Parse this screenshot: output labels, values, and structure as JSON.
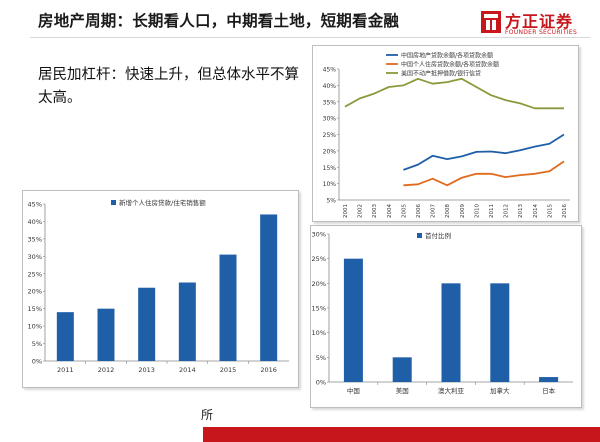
{
  "slide": {
    "title": "房地产周期：长期看人口，中期看土地，短期看金融",
    "body": "居民加杠杆：快速上升，但总体水平不算太高。",
    "footer_text": "所"
  },
  "logo": {
    "name": "方正证券",
    "subtitle": "FOUNDER SECURITIES",
    "color": "#c8161d"
  },
  "chart_data": [
    {
      "id": "line-chart",
      "type": "line",
      "title": "",
      "xlabel": "",
      "ylabel": "",
      "x": [
        "2001",
        "2002",
        "2003",
        "2004",
        "2005",
        "2006",
        "2007",
        "2008",
        "2009",
        "2010",
        "2011",
        "2012",
        "2013",
        "2014",
        "2015",
        "2016"
      ],
      "ylim": [
        0.05,
        0.45
      ],
      "yticks": [
        "5%",
        "10%",
        "15%",
        "20%",
        "25%",
        "30%",
        "35%",
        "40%",
        "45%"
      ],
      "grid": false,
      "legend_position": "top-left",
      "series": [
        {
          "name": "中国房地产贷款余额/各项贷款余额",
          "color": "#1f5fa8",
          "values": [
            null,
            null,
            null,
            null,
            0.142,
            0.158,
            0.185,
            0.175,
            0.183,
            0.197,
            0.198,
            0.193,
            0.202,
            0.213,
            0.222,
            0.25
          ]
        },
        {
          "name": "中国个人住房贷款余额/各项贷款余额",
          "color": "#e06b1f",
          "values": [
            null,
            null,
            null,
            null,
            0.095,
            0.098,
            0.115,
            0.095,
            0.118,
            0.13,
            0.13,
            0.12,
            0.126,
            0.13,
            0.138,
            0.168
          ]
        },
        {
          "name": "美国不动产抵押借款/银行信贷",
          "color": "#8a9a3b",
          "values": [
            0.335,
            0.36,
            0.375,
            0.395,
            0.4,
            0.42,
            0.405,
            0.41,
            0.42,
            0.395,
            0.37,
            0.355,
            0.345,
            0.33,
            0.33,
            0.33
          ]
        }
      ]
    },
    {
      "id": "bar-chart-1",
      "type": "bar",
      "title": "",
      "legend": "新增个人住房贷款/住宅销售额",
      "legend_position": "top",
      "color": "#1f5fa8",
      "categories": [
        "2011",
        "2012",
        "2013",
        "2014",
        "2015",
        "2016"
      ],
      "values": [
        0.14,
        0.15,
        0.21,
        0.225,
        0.305,
        0.42
      ],
      "ylim": [
        0,
        0.45
      ],
      "yticks": [
        "0%",
        "5%",
        "10%",
        "15%",
        "20%",
        "25%",
        "30%",
        "35%",
        "40%",
        "45%"
      ],
      "grid": false
    },
    {
      "id": "bar-chart-2",
      "type": "bar",
      "title": "",
      "legend": "首付比例",
      "legend_position": "top",
      "color": "#1f5fa8",
      "categories": [
        "中国",
        "美国",
        "澳大利亚",
        "加拿大",
        "日本"
      ],
      "values": [
        0.25,
        0.05,
        0.2,
        0.2,
        0.01
      ],
      "ylim": [
        0,
        0.3
      ],
      "yticks": [
        "0%",
        "5%",
        "10%",
        "15%",
        "20%",
        "25%",
        "30%"
      ],
      "grid": false
    }
  ]
}
